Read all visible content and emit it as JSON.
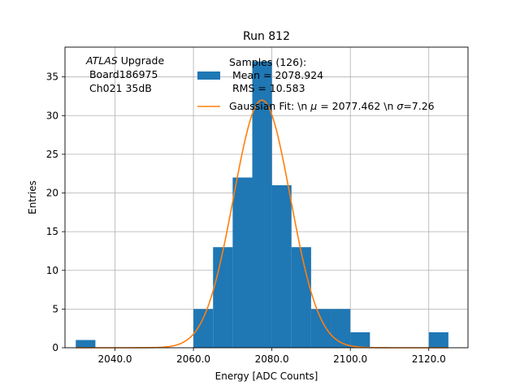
{
  "chart_data": {
    "type": "bar",
    "title": "Run 812",
    "xlabel": "Energy [ADC Counts]",
    "ylabel": "Entries",
    "xlim": [
      2027.25,
      2130.0
    ],
    "ylim": [
      0,
      38.85
    ],
    "x_ticks": [
      2040,
      2060,
      2080,
      2100,
      2120
    ],
    "x_tick_labels": [
      "2040.0",
      "2060.0",
      "2080.0",
      "2100.0",
      "2120.0"
    ],
    "y_ticks": [
      0,
      5,
      10,
      15,
      20,
      25,
      30,
      35
    ],
    "y_tick_labels": [
      "0",
      "5",
      "10",
      "15",
      "20",
      "25",
      "30",
      "35"
    ],
    "grid": true,
    "bin_width": 5,
    "bins": [
      {
        "x0": 2030,
        "value": 1
      },
      {
        "x0": 2060,
        "value": 5
      },
      {
        "x0": 2065,
        "value": 13
      },
      {
        "x0": 2070,
        "value": 22
      },
      {
        "x0": 2075,
        "value": 37
      },
      {
        "x0": 2080,
        "value": 21
      },
      {
        "x0": 2085,
        "value": 13
      },
      {
        "x0": 2090,
        "value": 5
      },
      {
        "x0": 2095,
        "value": 5
      },
      {
        "x0": 2100,
        "value": 2
      },
      {
        "x0": 2120,
        "value": 2
      }
    ],
    "fit": {
      "type": "gaussian",
      "mu": 2077.462,
      "sigma": 7.26,
      "amplitude": 32.0,
      "x_range": [
        2030,
        2125
      ]
    },
    "colors": {
      "bars": "#1f77b4",
      "fit": "#ff7f0e",
      "grid": "#b0b0b0"
    },
    "annotation": {
      "line1_italic": "ATLAS",
      "line1_rest": " Upgrade",
      "line2": " Board186975",
      "line3": " Ch021 35dB"
    },
    "legend": {
      "placement": "top-right",
      "samples_line1": "Samples (126):",
      "samples_line2": " Mean = 2078.924",
      "samples_line3": " RMS = 10.583",
      "fit_pre": "Gaussian Fit: \\n ",
      "fit_mu": "μ",
      "fit_mid": " = 2077.462 \\n ",
      "fit_sigma": "σ",
      "fit_post": "=7.26"
    }
  }
}
